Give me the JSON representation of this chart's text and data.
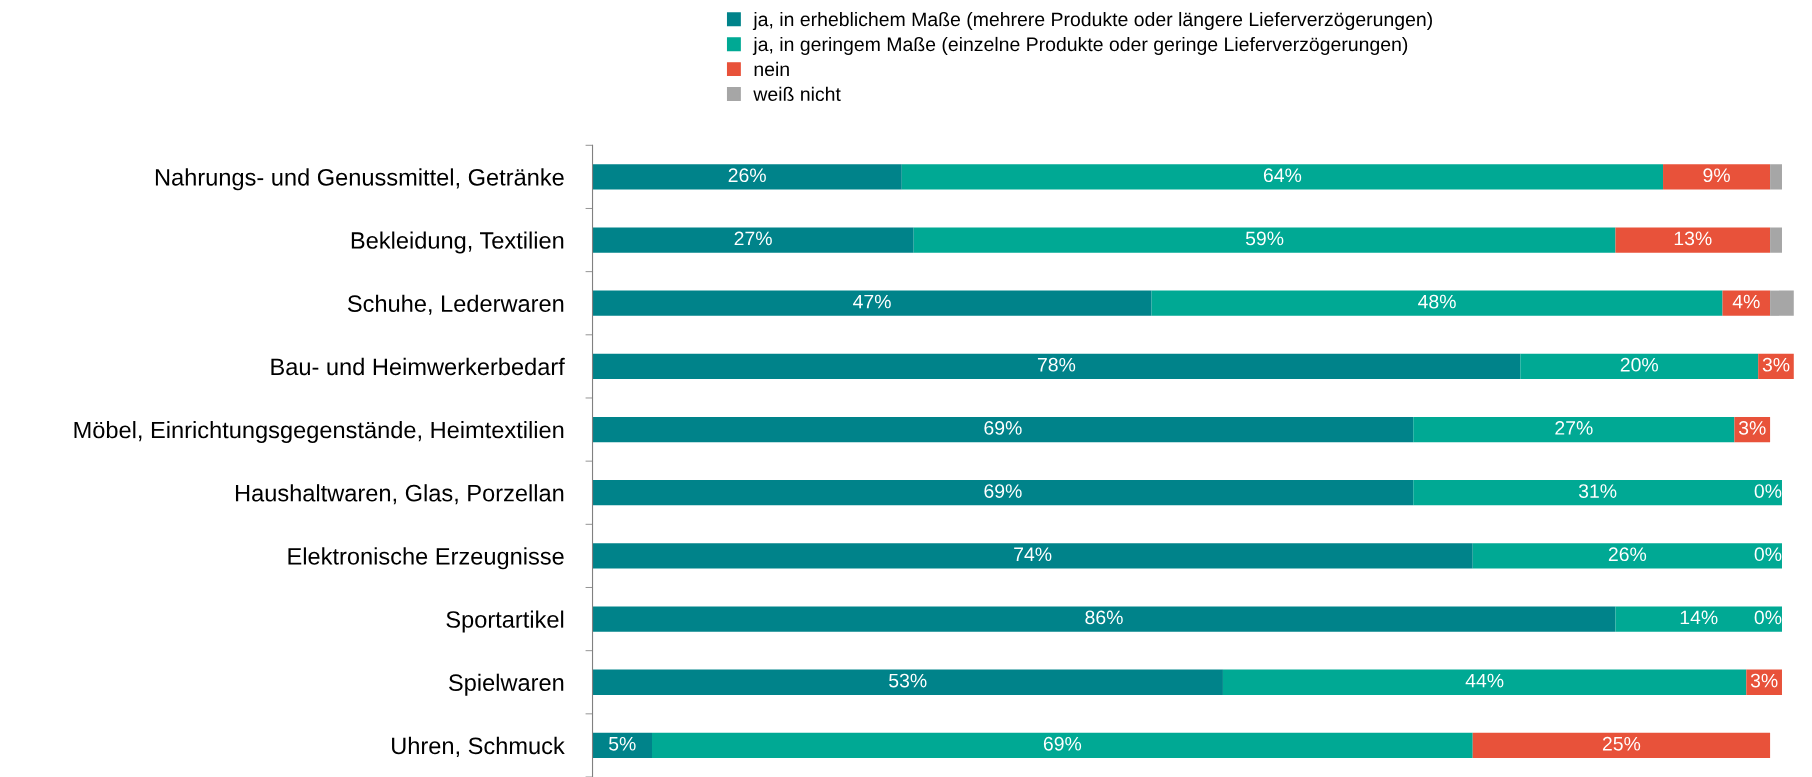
{
  "chart_data": {
    "type": "bar",
    "orientation": "horizontal",
    "stacked": true,
    "legend": "top",
    "grid": false,
    "categories": [
      "Nahrungs- und Genussmittel, Getränke",
      "Bekleidung, Textilien",
      "Schuhe, Lederwaren",
      "Bau- und Heimwerkerbedarf",
      "Möbel, Einrichtungsgegenstände, Heimtextilien",
      "Haushaltwaren, Glas, Porzellan",
      "Elektronische Erzeugnisse",
      "Sportartikel",
      "Spielwaren",
      "Uhren, Schmuck"
    ],
    "series": [
      {
        "name": "ja, in erheblichem Maße (mehrere Produkte oder längere Lieferverzögerungen)",
        "color": "#00838a",
        "values": [
          26,
          27,
          47,
          78,
          69,
          69,
          74,
          86,
          53,
          5
        ],
        "value_labels": [
          "26%",
          "27%",
          "47%",
          "78%",
          "69%",
          "69%",
          "74%",
          "86%",
          "53%",
          "5%"
        ]
      },
      {
        "name": "ja, in geringem Maße (einzelne Produkte oder geringe Lieferverzögerungen)",
        "color": "#00a994",
        "values": [
          64,
          59,
          48,
          20,
          27,
          31,
          26,
          14,
          44,
          69
        ],
        "value_labels": [
          "64%",
          "59%",
          "48%",
          "20%",
          "27%",
          "31%",
          "26%",
          "14%",
          "44%",
          "69%"
        ]
      },
      {
        "name": "nein",
        "color": "#e8523a",
        "values": [
          9,
          13,
          4,
          3,
          3,
          0,
          0,
          0,
          3,
          25
        ],
        "value_labels": [
          "9%",
          "13%",
          "4%",
          "3%",
          "3%",
          "0%",
          "0%",
          "0%",
          "3%",
          "25%"
        ]
      },
      {
        "name": "weiß nicht",
        "color": "#a6a6a6",
        "values": [
          1,
          1,
          2,
          0,
          0,
          0,
          0,
          0,
          0,
          0
        ]
      }
    ]
  }
}
